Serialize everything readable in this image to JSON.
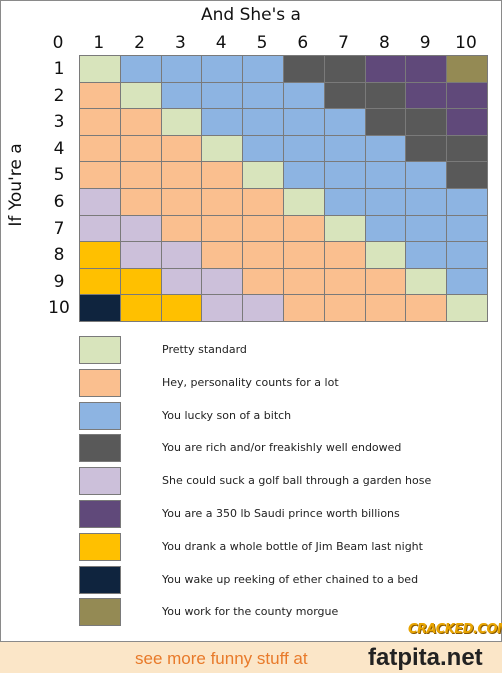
{
  "title": "And She's a",
  "ylabel": "If You're a",
  "col_ticks": [
    "0",
    "1",
    "2",
    "3",
    "4",
    "5",
    "6",
    "7",
    "8",
    "9",
    "10"
  ],
  "row_ticks": [
    "1",
    "2",
    "3",
    "4",
    "5",
    "6",
    "7",
    "8",
    "9",
    "10"
  ],
  "colors": {
    "G": "#d8e4bc",
    "O": "#fabf8f",
    "B": "#8db4e2",
    "D": "#595959",
    "L": "#ccc0da",
    "P": "#60497a",
    "Y": "#ffc000",
    "N": "#0f243e",
    "K": "#948a54"
  },
  "chart_data": {
    "type": "heatmap",
    "title": "And She's a",
    "xlabel": "",
    "ylabel": "If You're a",
    "x": [
      1,
      2,
      3,
      4,
      5,
      6,
      7,
      8,
      9,
      10
    ],
    "y": [
      1,
      2,
      3,
      4,
      5,
      6,
      7,
      8,
      9,
      10
    ],
    "grid": [
      [
        "G",
        "B",
        "B",
        "B",
        "B",
        "D",
        "D",
        "P",
        "P",
        "K"
      ],
      [
        "O",
        "G",
        "B",
        "B",
        "B",
        "B",
        "D",
        "D",
        "P",
        "P"
      ],
      [
        "O",
        "O",
        "G",
        "B",
        "B",
        "B",
        "B",
        "D",
        "D",
        "P"
      ],
      [
        "O",
        "O",
        "O",
        "G",
        "B",
        "B",
        "B",
        "B",
        "D",
        "D"
      ],
      [
        "O",
        "O",
        "O",
        "O",
        "G",
        "B",
        "B",
        "B",
        "B",
        "D"
      ],
      [
        "L",
        "O",
        "O",
        "O",
        "O",
        "G",
        "B",
        "B",
        "B",
        "B"
      ],
      [
        "L",
        "L",
        "O",
        "O",
        "O",
        "O",
        "G",
        "B",
        "B",
        "B"
      ],
      [
        "Y",
        "L",
        "L",
        "O",
        "O",
        "O",
        "O",
        "G",
        "B",
        "B"
      ],
      [
        "Y",
        "Y",
        "L",
        "L",
        "O",
        "O",
        "O",
        "O",
        "G",
        "B"
      ],
      [
        "N",
        "Y",
        "Y",
        "L",
        "L",
        "O",
        "O",
        "O",
        "O",
        "G"
      ]
    ],
    "legend": [
      {
        "code": "G",
        "label": "Pretty standard"
      },
      {
        "code": "O",
        "label": "Hey, personality counts for a lot"
      },
      {
        "code": "B",
        "label": "You lucky son of a bitch"
      },
      {
        "code": "D",
        "label": "You are rich and/or freakishly well endowed"
      },
      {
        "code": "L",
        "label": "She could suck a golf ball through a garden hose"
      },
      {
        "code": "P",
        "label": "You are a 350 lb Saudi prince worth billions"
      },
      {
        "code": "Y",
        "label": "You drank a whole bottle of Jim Beam last night"
      },
      {
        "code": "N",
        "label": "You wake up reeking of ether chained to a bed"
      },
      {
        "code": "K",
        "label": "You work for the county morgue"
      }
    ]
  },
  "logo": "CRACKED.COM",
  "footer": {
    "text": "see more funny stuff at",
    "site": "fatpita.net"
  }
}
